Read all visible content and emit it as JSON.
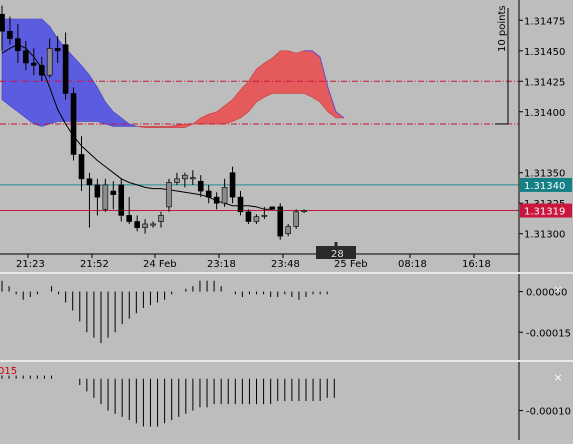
{
  "chart_data": [
    {
      "type": "candlestick",
      "title": "",
      "x_tick_labels": [
        "21:23",
        "21:52",
        "24 Feb",
        "23:18",
        "23:48",
        "25 Feb",
        "08:18",
        "16:18"
      ],
      "y_tick_labels": [
        "1.31475",
        "1.31450",
        "1.31425",
        "1.31400",
        "1.31350",
        "1.31325",
        "1.31300"
      ],
      "ylim": [
        1.31285,
        1.3149
      ],
      "price_labels": [
        {
          "text": "1.31340",
          "color": "#157f86"
        },
        {
          "text": "1.31319",
          "color": "#c8163c"
        }
      ],
      "horizontal_lines": [
        {
          "value": 1.3134,
          "color": "#1d8f96",
          "style": "solid"
        },
        {
          "value": 1.31319,
          "color": "#c8163c",
          "style": "solid"
        },
        {
          "value": 1.31425,
          "color": "#c8163c",
          "style": "dash-dot"
        },
        {
          "value": 1.3139,
          "color": "#c8163c",
          "style": "dash-dot"
        }
      ],
      "scale_marker": "10 points",
      "cursor_label": "28",
      "colors": {
        "cloud_bear": "#5c5ce0",
        "cloud_bull": "#e55a5a",
        "moving_average": "#000000",
        "bull_candle": "#8c8c8c",
        "bear_candle": "#000000"
      },
      "series": [
        {
          "type": "candles",
          "candles": [
            [
              1.3148,
              1.31487,
              1.3145,
              1.31466
            ],
            [
              1.31466,
              1.31478,
              1.31455,
              1.3146
            ],
            [
              1.3146,
              1.31472,
              1.3144,
              1.3145
            ],
            [
              1.3145,
              1.31458,
              1.31434,
              1.3144
            ],
            [
              1.3144,
              1.31452,
              1.3143,
              1.31438
            ],
            [
              1.31438,
              1.31445,
              1.31425,
              1.3143
            ],
            [
              1.3143,
              1.3146,
              1.31428,
              1.31452
            ],
            [
              1.31452,
              1.31462,
              1.3144,
              1.3145
            ],
            [
              1.31455,
              1.31465,
              1.3141,
              1.31415
            ],
            [
              1.31415,
              1.3142,
              1.3136,
              1.31365
            ],
            [
              1.31365,
              1.3138,
              1.31335,
              1.31345
            ],
            [
              1.31345,
              1.3135,
              1.31305,
              1.3134
            ],
            [
              1.3134,
              1.31345,
              1.31315,
              1.3133
            ],
            [
              1.3132,
              1.31345,
              1.31318,
              1.3134
            ],
            [
              1.31335,
              1.31343,
              1.3132,
              1.31332
            ],
            [
              1.3134,
              1.31345,
              1.3131,
              1.31315
            ],
            [
              1.31315,
              1.3133,
              1.31308,
              1.3131
            ],
            [
              1.3131,
              1.31315,
              1.31302,
              1.31305
            ],
            [
              1.31305,
              1.31312,
              1.313,
              1.31308
            ],
            [
              1.31307,
              1.3131,
              1.31305,
              1.31308
            ],
            [
              1.3131,
              1.31318,
              1.31305,
              1.31315
            ],
            [
              1.31322,
              1.31345,
              1.31318,
              1.31342
            ],
            [
              1.31342,
              1.3135,
              1.3134,
              1.31345
            ],
            [
              1.31345,
              1.3135,
              1.31338,
              1.31348
            ],
            [
              1.31345,
              1.31352,
              1.3134,
              1.31346
            ],
            [
              1.31343,
              1.31348,
              1.3133,
              1.31335
            ],
            [
              1.31335,
              1.3134,
              1.31325,
              1.3133
            ],
            [
              1.3133,
              1.31334,
              1.3132,
              1.31325
            ],
            [
              1.31325,
              1.31345,
              1.31322,
              1.31338
            ],
            [
              1.3135,
              1.31355,
              1.31325,
              1.3133
            ],
            [
              1.3133,
              1.31335,
              1.31315,
              1.31318
            ],
            [
              1.31318,
              1.3132,
              1.31308,
              1.3131
            ],
            [
              1.3131,
              1.31316,
              1.31308,
              1.31314
            ],
            [
              1.31315,
              1.31322,
              1.31312,
              1.31315
            ],
            [
              1.31322,
              1.31322,
              1.3132,
              1.3132
            ],
            [
              1.31322,
              1.31325,
              1.31295,
              1.31298
            ],
            [
              1.313,
              1.31308,
              1.31298,
              1.31306
            ],
            [
              1.31306,
              1.3132,
              1.31304,
              1.31318
            ],
            [
              1.31318,
              1.3132,
              1.31317,
              1.31319
            ]
          ]
        },
        {
          "type": "line",
          "name": "",
          "values": [
            1.31448,
            1.31452,
            1.31455,
            1.31452,
            1.31445,
            1.31436,
            1.3142,
            1.31402,
            1.3139,
            1.3138,
            1.31372,
            1.31366,
            1.3136,
            1.31355,
            1.3135,
            1.31345,
            1.31342,
            1.3134,
            1.31338,
            1.31337,
            1.31337,
            1.31336,
            1.31335,
            1.31334,
            1.31333,
            1.31332,
            1.3133,
            1.31327,
            1.31325,
            1.31323,
            1.31323,
            1.31323,
            1.31322,
            1.3132,
            1.3132
          ]
        },
        {
          "type": "cloud",
          "span_a": [
            1.31476,
            1.31476,
            1.31476,
            1.31476,
            1.31476,
            1.31476,
            1.3147,
            1.3146,
            1.31452,
            1.31445,
            1.31438,
            1.3143,
            1.3142,
            1.31408,
            1.314,
            1.31395,
            1.3139,
            1.31388,
            1.31387,
            1.31387,
            1.31387,
            1.31387,
            1.31387,
            1.31387,
            1.3139,
            1.31395,
            1.31398,
            1.314,
            1.31405,
            1.3141,
            1.31418,
            1.31425,
            1.31435,
            1.3144,
            1.31444,
            1.3145,
            1.3145,
            1.31448,
            1.3145,
            1.3145,
            1.31445,
            1.3142,
            1.314,
            1.31395
          ],
          "span_b": [
            1.3141,
            1.31405,
            1.314,
            1.31395,
            1.3139,
            1.31388,
            1.3139,
            1.31392,
            1.31392,
            1.31392,
            1.31392,
            1.31392,
            1.31392,
            1.3139,
            1.31388,
            1.31388,
            1.31388,
            1.31388,
            1.31388,
            1.31388,
            1.31388,
            1.31388,
            1.31389,
            1.3139,
            1.3139,
            1.3139,
            1.3139,
            1.3139,
            1.3139,
            1.31392,
            1.31395,
            1.314,
            1.31408,
            1.31412,
            1.31415,
            1.31415,
            1.31415,
            1.31415,
            1.31415,
            1.31412,
            1.31408,
            1.314,
            1.31395,
            1.31395
          ]
        }
      ]
    },
    {
      "type": "histogram",
      "y_tick_labels": [
        "0.00000",
        "-0.00015"
      ],
      "ylim": [
        -0.00023,
        5e-05
      ],
      "zero": 0,
      "values": [
        4e-05,
        2e-05,
        -1e-05,
        -3e-05,
        -2e-05,
        -1e-05,
        0.0,
        2e-05,
        -1e-05,
        -4e-05,
        -7e-05,
        -0.00011,
        -0.00015,
        -0.00017,
        -0.00019,
        -0.00017,
        -0.00015,
        -0.00012,
        -0.0001,
        -8e-05,
        -6e-05,
        -5e-05,
        -4e-05,
        -3e-05,
        -1e-05,
        0.0,
        1e-05,
        2e-05,
        4e-05,
        4e-05,
        4e-05,
        2e-05,
        0.0,
        -1e-05,
        -2e-05,
        -1e-05,
        -1e-05,
        -1e-05,
        -2e-05,
        -2e-05,
        -1e-05,
        -2e-05,
        -3e-05,
        -2e-05,
        -1e-05,
        -1e-05,
        -1e-05,
        0.0
      ]
    },
    {
      "type": "histogram",
      "y_tick_labels": [
        "-0.00010"
      ],
      "ylim": [
        -0.00018,
        4e-05
      ],
      "header": "015",
      "values": [
        1e-05,
        1e-05,
        1e-05,
        1e-05,
        1e-05,
        1e-05,
        1e-05,
        1e-05,
        0.0,
        0.0,
        0.0,
        -2e-05,
        -4e-05,
        -6e-05,
        -8e-05,
        -0.0001,
        -0.00011,
        -0.00012,
        -0.00013,
        -0.00014,
        -0.00015,
        -0.00015,
        -0.00015,
        -0.00014,
        -0.00013,
        -0.00012,
        -0.00011,
        -0.0001,
        -9e-05,
        -9e-05,
        -8e-05,
        -8e-05,
        -8e-05,
        -8e-05,
        -8e-05,
        -8e-05,
        -8e-05,
        -8e-05,
        -8e-05,
        -7e-05,
        -7e-05,
        -7e-05,
        -7e-05,
        -7e-05,
        -7e-05,
        -7e-05,
        -6e-05,
        -6e-05
      ]
    }
  ],
  "panes": {
    "close_glyph": "×"
  }
}
